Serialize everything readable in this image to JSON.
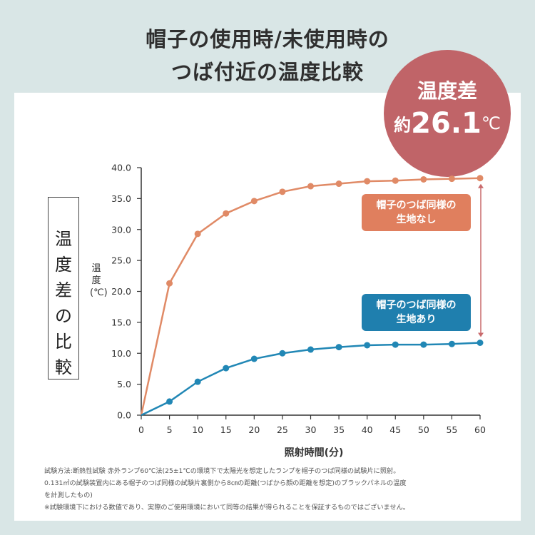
{
  "title_line1": "帽子の使用時/未使用時の",
  "title_line2": "つば付近の温度比較",
  "badge": {
    "line1": "温度差",
    "prefix": "約",
    "value": "26.1",
    "unit": "℃"
  },
  "side_label": "温度差の比較",
  "callouts": {
    "without": "帽子のつば同様の\n生地なし",
    "with": "帽子のつば同様の\n生地あり"
  },
  "footnote": [
    "試験方法:断熱性試験 赤外ランプ60℃法(25±1℃の環境下で太陽光を想定したランプを帽子のつば同様の試験片に照射。",
    "0.131㎡の試験装置内にある帽子のつば同様の試験片裏側から8㎝の距離(つばから顔の距離を想定)のブラックパネルの温度",
    "を計測したもの)",
    "※試験環境下における数値であり、実際のご使用環境において同等の結果が得られることを保証するものではございません。"
  ],
  "colors": {
    "without": "#e08a66",
    "with": "#2187b5",
    "badge": "#c06468",
    "arrow": "#c96a6c"
  },
  "chart_data": {
    "type": "line",
    "xlabel": "照射時間(分)",
    "ylabel": "温度(℃)",
    "x": [
      0,
      5,
      10,
      15,
      20,
      25,
      30,
      35,
      40,
      45,
      50,
      55,
      60
    ],
    "xlim": [
      0,
      60
    ],
    "ylim": [
      0,
      40
    ],
    "yticks": [
      "0.0",
      "5.0",
      "10.0",
      "15.0",
      "20.0",
      "25.0",
      "30.0",
      "35.0",
      "40.0"
    ],
    "xticks": [
      "0",
      "5",
      "10",
      "15",
      "20",
      "25",
      "30",
      "35",
      "40",
      "45",
      "50",
      "55",
      "60"
    ],
    "grid": false,
    "series": [
      {
        "name": "帽子のつば同様の生地なし",
        "key": "without",
        "values": [
          0,
          21.3,
          29.3,
          32.6,
          34.6,
          36.1,
          37.0,
          37.4,
          37.8,
          37.9,
          38.1,
          38.2,
          38.3
        ]
      },
      {
        "name": "帽子のつば同様の生地あり",
        "key": "with",
        "values": [
          0,
          2.2,
          5.4,
          7.6,
          9.1,
          10.0,
          10.6,
          11.0,
          11.3,
          11.4,
          11.4,
          11.5,
          11.7
        ]
      }
    ]
  }
}
